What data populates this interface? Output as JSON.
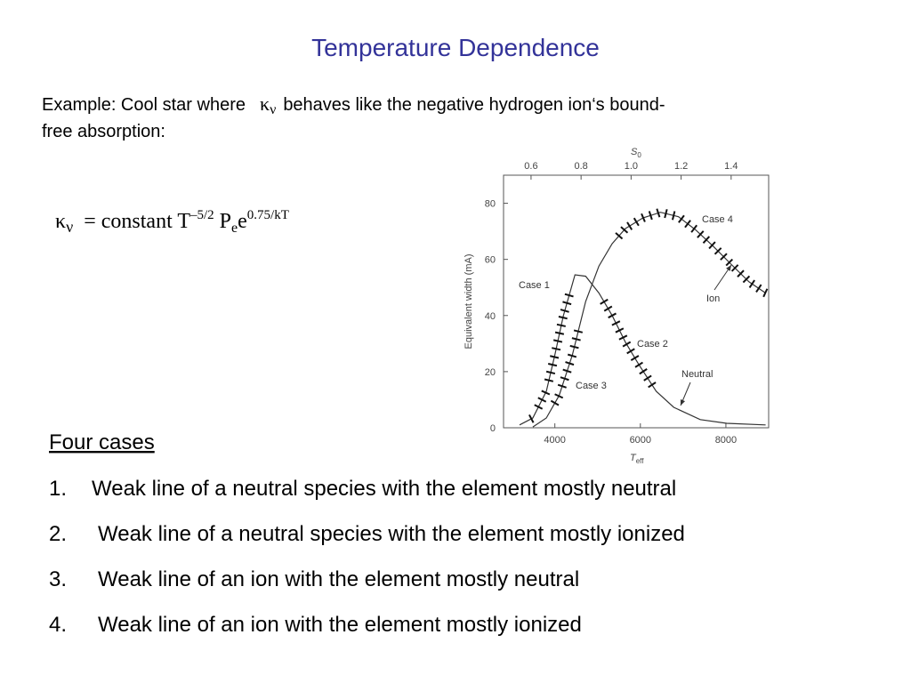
{
  "header": {
    "title": "Temperature Dependence"
  },
  "intro": {
    "before": "Example: Cool star where",
    "symbol": "κ",
    "symbol_sub": "ν",
    "after_line1": "behaves like the negative hydrogen ion‘s bound-",
    "line2": "free absorption:"
  },
  "formula": {
    "kappa": "κ",
    "kappa_sub": "ν",
    "middle": "= constant T",
    "t_exp": "–5/2",
    "p": "P",
    "p_sub": "e",
    "e": "e",
    "e_exp": "0.75/kT"
  },
  "chart_data": {
    "type": "line",
    "y_label": "Equivalent width (mA)",
    "x_label": "T",
    "x_label_sub": "eff",
    "x2_label": "S",
    "x2_label_sub": "0",
    "xlim": [
      2800,
      9000
    ],
    "ylim": [
      0,
      90
    ],
    "x2lim": [
      0.49,
      1.55
    ],
    "xticks": [
      4000,
      6000,
      8000
    ],
    "yticks": [
      0,
      20,
      40,
      60,
      80
    ],
    "x2ticks": [
      0.6,
      0.8,
      {
        "value": 1,
        "label": "1.0"
      },
      1.2,
      1.4
    ],
    "series": [
      {
        "name": "Neutral",
        "color": "#333333",
        "x": [
          3175,
          3485,
          3800,
          4000,
          4200,
          4470,
          4720,
          5030,
          5340,
          5650,
          5960,
          6370,
          6780,
          7400,
          8020,
          8930
        ],
        "values": [
          1,
          3.5,
          13,
          26,
          40,
          54.5,
          54,
          48,
          40,
          30.5,
          22.6,
          13,
          7.3,
          2.9,
          1.6,
          1
        ]
      },
      {
        "name": "Ion",
        "color": "#333333",
        "x": [
          3485,
          3800,
          4100,
          4410,
          4720,
          5030,
          5340,
          5650,
          6060,
          6470,
          6890,
          7300,
          7710,
          8120,
          8540,
          8930
        ],
        "values": [
          0.3,
          3.5,
          11.5,
          26,
          45,
          57.6,
          65.6,
          71,
          74.8,
          76.8,
          75.2,
          70.4,
          64.6,
          58.3,
          52,
          48
        ]
      }
    ],
    "annotations": [
      {
        "text": "Case 1",
        "series": 0,
        "from": 3450,
        "to": 4350
      },
      {
        "text": "Case 2",
        "series": 0,
        "from": 5150,
        "to": 6300
      },
      {
        "text": "Case 3",
        "series": 1,
        "from": 4000,
        "to": 4560
      },
      {
        "text": "Case 4",
        "series": 1,
        "from": 5500,
        "to": 8930
      },
      {
        "text": "Ion"
      },
      {
        "text": "Neutral"
      }
    ]
  },
  "list": {
    "heading": "Four cases",
    "items": [
      {
        "number": "1.",
        "text": "Weak line of a neutral species with the element mostly neutral"
      },
      {
        "number": "2.",
        "text": "Weak line of a neutral species with the element mostly ionized"
      },
      {
        "number": "3.",
        "text": "Weak line of an ion with the element mostly neutral"
      },
      {
        "number": "4.",
        "text": "Weak line of an ion with the element mostly ionized"
      }
    ]
  }
}
